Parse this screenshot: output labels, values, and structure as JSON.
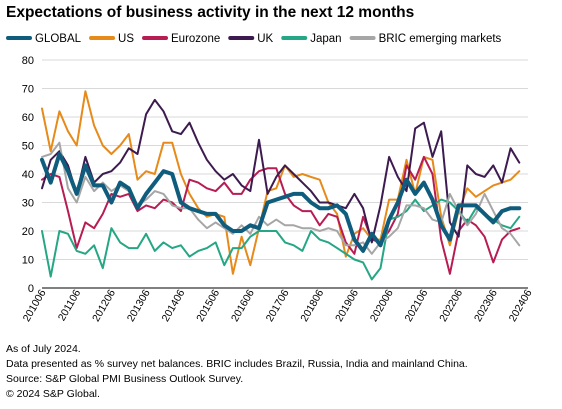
{
  "title": "Expectations of business activity in the next 12 months",
  "footnotes": [
    "As of July 2024.",
    "Data presented as % survey net balances. BRIC includes Brazil, Russia, India and mainland China.",
    "Source: S&P Global PMI Business Outlook Survey.",
    "© 2024 S&P Global."
  ],
  "chart_data": {
    "type": "line",
    "ylim": [
      0,
      80
    ],
    "yticks": [
      0,
      10,
      20,
      30,
      40,
      50,
      60,
      70,
      80
    ],
    "xlim": [
      0,
      56
    ],
    "xtick_labels": [
      "201006",
      "201106",
      "201206",
      "201306",
      "201406",
      "201506",
      "201606",
      "201706",
      "201806",
      "201906",
      "202006",
      "202106",
      "202206",
      "202306",
      "202406"
    ],
    "grid": "horizontal",
    "legend_position": "top",
    "series": [
      {
        "name": "GLOBAL",
        "color": "#0f5c7d",
        "width": 4,
        "values": [
          45,
          37,
          47,
          41,
          33,
          43,
          36,
          36,
          30,
          37,
          35,
          28,
          33,
          37,
          41,
          40,
          30,
          28,
          27,
          26,
          26,
          22,
          20,
          20,
          22,
          21,
          30,
          31,
          32,
          33,
          33,
          30,
          28,
          28,
          29,
          26,
          17,
          13,
          19,
          15,
          24,
          30,
          38,
          33,
          37,
          31,
          22,
          17,
          29,
          29,
          29,
          26,
          23,
          27,
          28,
          28
        ]
      },
      {
        "name": "US",
        "color": "#e68a1a",
        "width": 2,
        "values": [
          63,
          48,
          62,
          55,
          50,
          69,
          57,
          50,
          47,
          50,
          54,
          38,
          41,
          40,
          51,
          51,
          40,
          33,
          28,
          25,
          26,
          25,
          5,
          18,
          8,
          21,
          34,
          35,
          43,
          39,
          40,
          39,
          38,
          30,
          26,
          11,
          19,
          21,
          17,
          17,
          31,
          31,
          45,
          33,
          46,
          45,
          25,
          15,
          27,
          35,
          32,
          34,
          36,
          37,
          38,
          41
        ]
      },
      {
        "name": "Eurozone",
        "color": "#b71c53",
        "width": 2,
        "values": [
          38,
          40,
          39,
          27,
          14,
          23,
          21,
          26,
          33,
          32,
          33,
          27,
          29,
          28,
          31,
          30,
          27,
          38,
          37,
          35,
          34,
          37,
          33,
          33,
          38,
          41,
          42,
          42,
          33,
          29,
          27,
          27,
          22,
          26,
          25,
          16,
          12,
          25,
          17,
          16,
          20,
          26,
          43,
          38,
          46,
          40,
          17,
          5,
          20,
          24,
          22,
          18,
          9,
          17,
          20,
          21
        ]
      },
      {
        "name": "UK",
        "color": "#3d1a4f",
        "width": 2,
        "values": [
          35,
          45,
          48,
          43,
          33,
          46,
          37,
          40,
          41,
          44,
          49,
          47,
          61,
          66,
          62,
          55,
          54,
          58,
          51,
          45,
          41,
          38,
          40,
          36,
          34,
          52,
          33,
          39,
          43,
          40,
          37,
          34,
          30,
          30,
          29,
          28,
          33,
          28,
          16,
          29,
          46,
          39,
          34,
          56,
          58,
          46,
          55,
          23,
          18,
          43,
          40,
          39,
          43,
          37,
          49,
          44
        ]
      },
      {
        "name": "Japan",
        "color": "#25a685",
        "width": 2,
        "values": [
          20,
          4,
          20,
          19,
          13,
          12,
          15,
          7,
          21,
          16,
          14,
          14,
          19,
          13,
          16,
          14,
          15,
          11,
          13,
          14,
          16,
          8,
          14,
          14,
          18,
          20,
          20,
          20,
          16,
          15,
          13,
          20,
          17,
          16,
          14,
          12,
          10,
          9,
          3,
          7,
          24,
          25,
          27,
          31,
          27,
          29,
          31,
          30,
          27,
          23,
          28,
          26,
          24,
          22,
          21,
          25
        ]
      },
      {
        "name": "BRIC emerging markets",
        "color": "#a6a6a6",
        "width": 2,
        "values": [
          46,
          47,
          51,
          35,
          30,
          39,
          34,
          37,
          34,
          36,
          34,
          29,
          31,
          34,
          33,
          29,
          28,
          28,
          24,
          21,
          23,
          21,
          19,
          22,
          19,
          25,
          22,
          24,
          22,
          22,
          21,
          21,
          20,
          21,
          20,
          15,
          15,
          16,
          12,
          16,
          18,
          21,
          29,
          29,
          28,
          24,
          23,
          33,
          27,
          22,
          26,
          33,
          27,
          21,
          19,
          15
        ]
      }
    ]
  }
}
